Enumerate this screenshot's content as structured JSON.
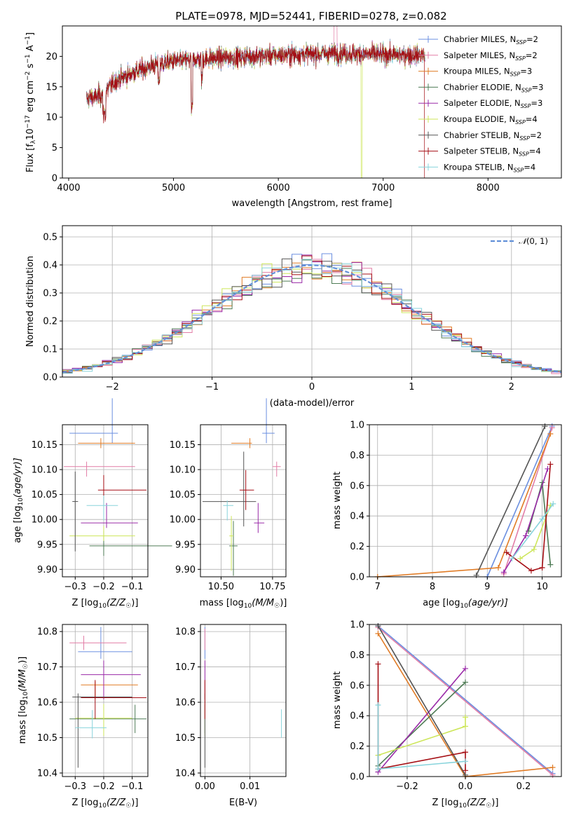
{
  "palette": [
    "#6b8fe0",
    "#e27da6",
    "#e07b25",
    "#4f7c56",
    "#9a2aa8",
    "#cde65a",
    "#555555",
    "#a50f15",
    "#88d4dc"
  ],
  "chart_data": [
    {
      "type": "line",
      "name": "spectrum",
      "title": "PLATE=0978, MJD=52441, FIBERID=0278, z=0.082",
      "xlabel": "wavelength [Angstrom, rest frame]",
      "ylabel_pre": "Flux [f",
      "ylabel_sub": "λ",
      "ylabel_mid": "10",
      "ylabel_exp": "−17",
      "ylabel_post": " erg cm",
      "ylabel_exp2": "−2",
      "ylabel_post2": " s",
      "ylabel_exp3": "−1",
      "ylabel_post3": " A",
      "ylabel_exp4": "−1",
      "ylabel_end": "]",
      "xlim": [
        3940,
        8700
      ],
      "ylim": [
        0,
        25
      ],
      "xticks": [
        "4000",
        "5000",
        "6000",
        "7000",
        "8000"
      ],
      "yticks": [
        "0",
        "5",
        "10",
        "15",
        "20"
      ],
      "grid": false,
      "legend_position": "top-right",
      "x_range": [
        4170,
        7400
      ],
      "series": [
        {
          "name_pre": "Chabrier MILES, N",
          "name_sub": "SSP",
          "name_post": "=2"
        },
        {
          "name_pre": "Salpeter MILES, N",
          "name_sub": "SSP",
          "name_post": "=2"
        },
        {
          "name_pre": "Kroupa MILES, N",
          "name_sub": "SSP",
          "name_post": "=3"
        },
        {
          "name_pre": "Chabrier ELODIE, N",
          "name_sub": "SSP",
          "name_post": "=3"
        },
        {
          "name_pre": "Salpeter ELODIE, N",
          "name_sub": "SSP",
          "name_post": "=3"
        },
        {
          "name_pre": "Kroupa ELODIE, N",
          "name_sub": "SSP",
          "name_post": "=4"
        },
        {
          "name_pre": "Chabrier STELIB, N",
          "name_sub": "SSP",
          "name_post": "=2"
        },
        {
          "name_pre": "Salpeter STELIB, N",
          "name_sub": "SSP",
          "name_post": "=4"
        },
        {
          "name_pre": "Kroupa STELIB, N",
          "name_sub": "SSP",
          "name_post": "=4"
        }
      ],
      "continuum": [
        [
          4170,
          13
        ],
        [
          4300,
          13.5
        ],
        [
          4450,
          16
        ],
        [
          4600,
          17.2
        ],
        [
          4800,
          18.5
        ],
        [
          5000,
          19.2
        ],
        [
          5200,
          19.5
        ],
        [
          5500,
          19.8
        ],
        [
          6000,
          20.2
        ],
        [
          6500,
          20.5
        ],
        [
          7000,
          20.3
        ],
        [
          7400,
          20.2
        ]
      ]
    },
    {
      "type": "bar",
      "name": "residual-histogram",
      "xlabel": "(data-model)/error",
      "ylabel": "Normed distribution",
      "xlim": [
        -2.5,
        2.5
      ],
      "ylim": [
        0,
        0.54
      ],
      "xticks": [
        "−2",
        "−1",
        "0",
        "1",
        "2"
      ],
      "yticks": [
        "0.0",
        "0.1",
        "0.2",
        "0.3",
        "0.4",
        "0.5"
      ],
      "grid": true,
      "legend_position": "top-right",
      "legend_label_pre": "𝒩",
      "legend_label_post": "(0, 1)",
      "bin_width": 0.1
    },
    {
      "type": "scatter",
      "name": "age-vs-Z",
      "xlabel_pre": "Z [log",
      "xlabel_sub": "10",
      "xlabel_post": "(Z/Z",
      "xlabel_sub2": "☉",
      "xlabel_end": ")]",
      "ylabel_pre": "age  [log",
      "ylabel_sub": "10",
      "ylabel_post": "(age/yr)]",
      "xlim": [
        -0.345,
        -0.045
      ],
      "ylim": [
        9.885,
        10.19
      ],
      "xticks": [
        "−0.3",
        "−0.2",
        "−0.1"
      ],
      "yticks": [
        "9.90",
        "9.95",
        "10.00",
        "10.05",
        "10.10",
        "10.15"
      ],
      "grid": true,
      "points": [
        {
          "x": -0.17,
          "y": 10.173,
          "xerr": [
            0.15,
            0.02
          ],
          "yerr": [
            0.02,
            0.07
          ]
        },
        {
          "x": -0.26,
          "y": 10.106,
          "xerr": [
            0.08,
            0.17
          ],
          "yerr": [
            0.02,
            0.01
          ]
        },
        {
          "x": -0.21,
          "y": 10.153,
          "xerr": [
            0.08,
            0.12
          ],
          "yerr": [
            0.01,
            0.01
          ]
        },
        {
          "x": -0.2,
          "y": 9.947,
          "xerr": [
            0.05,
            0.24
          ],
          "yerr": [
            0.02,
            0.03
          ]
        },
        {
          "x": -0.19,
          "y": 9.993,
          "xerr": [
            0.09,
            0.11
          ],
          "yerr": [
            0.01,
            0.04
          ]
        },
        {
          "x": -0.2,
          "y": 9.967,
          "xerr": [
            0.12,
            0.11
          ],
          "yerr": [
            0.01,
            0.02
          ]
        },
        {
          "x": -0.3,
          "y": 10.036,
          "xerr": [
            0.01,
            0.01
          ],
          "yerr": [
            0.1,
            0.06
          ]
        },
        {
          "x": -0.2,
          "y": 10.059,
          "xerr": [
            0.02,
            0.15
          ],
          "yerr": [
            0.03,
            0.03
          ]
        },
        {
          "x": -0.2,
          "y": 10.028,
          "xerr": [
            0.06,
            0.05
          ],
          "yerr": [
            0.03,
            0.02
          ]
        }
      ]
    },
    {
      "type": "scatter",
      "name": "age-vs-mass",
      "xlabel_pre": "mass [log",
      "xlabel_sub": "10",
      "xlabel_post": "(M/M",
      "xlabel_sub2": "☉",
      "xlabel_end": ")]",
      "xlim": [
        10.4,
        10.815
      ],
      "ylim": [
        9.885,
        10.19
      ],
      "xticks": [
        "10.50",
        "10.75"
      ],
      "yticks": [
        "9.90",
        "9.95",
        "10.00",
        "10.05",
        "10.10",
        "10.15"
      ],
      "grid": true,
      "points": [
        {
          "x": 10.72,
          "y": 10.173,
          "xerr": [
            0.02,
            0.04
          ],
          "yerr": [
            0.02,
            0.07
          ]
        },
        {
          "x": 10.77,
          "y": 10.106,
          "xerr": [
            0.02,
            0.02
          ],
          "yerr": [
            0.02,
            0.01
          ]
        },
        {
          "x": 10.64,
          "y": 10.153,
          "xerr": [
            0.09,
            0.01
          ],
          "yerr": [
            0.01,
            0.01
          ]
        },
        {
          "x": 10.56,
          "y": 9.947,
          "xerr": [
            0.02,
            0.02
          ],
          "yerr": [
            0.06,
            0.05
          ]
        },
        {
          "x": 10.68,
          "y": 9.993,
          "xerr": [
            0.02,
            0.03
          ],
          "yerr": [
            0.02,
            0.04
          ]
        },
        {
          "x": 10.55,
          "y": 9.967,
          "xerr": [
            0.01,
            0.01
          ],
          "yerr": [
            0.07,
            0.04
          ]
        },
        {
          "x": 10.61,
          "y": 10.036,
          "xerr": [
            0.2,
            0.06
          ],
          "yerr": [
            0.05,
            0.1
          ]
        },
        {
          "x": 10.62,
          "y": 10.059,
          "xerr": [
            0.03,
            0.04
          ],
          "yerr": [
            0.04,
            0.04
          ]
        },
        {
          "x": 10.53,
          "y": 10.028,
          "xerr": [
            0.02,
            0.03
          ],
          "yerr": [
            0.03,
            0.01
          ]
        }
      ]
    },
    {
      "type": "line",
      "name": "mass-weight-vs-age",
      "xlabel_pre": "age  [log",
      "xlabel_sub": "10",
      "xlabel_post": "(age/yr)]",
      "ylabel": "mass weight",
      "xlim": [
        6.85,
        10.35
      ],
      "ylim": [
        0,
        1.0
      ],
      "xticks": [
        "7",
        "8",
        "9",
        "10"
      ],
      "yticks": [
        "0.0",
        "0.2",
        "0.4",
        "0.6",
        "0.8",
        "1.0"
      ],
      "grid": true,
      "series": [
        {
          "x": [
            9.0,
            10.18
          ],
          "y": [
            0.0,
            0.99
          ]
        },
        {
          "x": [
            9.3,
            10.18
          ],
          "y": [
            0.02,
            0.98
          ]
        },
        {
          "x": [
            7.0,
            9.2,
            10.15
          ],
          "y": [
            0.0,
            0.06,
            0.94
          ]
        },
        {
          "x": [
            9.75,
            10.0,
            10.15
          ],
          "y": [
            0.3,
            0.62,
            0.08
          ]
        },
        {
          "x": [
            9.3,
            9.7,
            10.1
          ],
          "y": [
            0.03,
            0.27,
            0.71
          ]
        },
        {
          "x": [
            9.6,
            9.85,
            10.15
          ],
          "y": [
            0.12,
            0.18,
            0.47
          ]
        },
        {
          "x": [
            8.8,
            10.05
          ],
          "y": [
            0.01,
            0.99
          ]
        },
        {
          "x": [
            9.35,
            9.8,
            10.0,
            10.15
          ],
          "y": [
            0.16,
            0.04,
            0.06,
            0.74
          ]
        },
        {
          "x": [
            9.45,
            10.0,
            10.2
          ],
          "y": [
            0.12,
            0.38,
            0.48
          ]
        }
      ]
    },
    {
      "type": "scatter",
      "name": "mass-vs-Z",
      "xlabel_pre": "Z [log",
      "xlabel_sub": "10",
      "xlabel_post": "(Z/Z",
      "xlabel_sub2": "☉",
      "xlabel_end": ")]",
      "ylabel_pre": "mass [log",
      "ylabel_sub": "10",
      "ylabel_post": "(M/M",
      "ylabel_sub2": "☉",
      "ylabel_end": ")]",
      "xlim": [
        -0.345,
        -0.045
      ],
      "ylim": [
        10.39,
        10.82
      ],
      "xticks": [
        "−0.3",
        "−0.2",
        "−0.1"
      ],
      "yticks": [
        "10.4",
        "10.5",
        "10.6",
        "10.7",
        "10.8"
      ],
      "grid": true,
      "points": [
        {
          "x": -0.21,
          "y": 10.743,
          "xerr": [
            0.08,
            0.11
          ],
          "yerr": [
            0.02,
            0.07
          ]
        },
        {
          "x": -0.27,
          "y": 10.768,
          "xerr": [
            0.05,
            0.15
          ],
          "yerr": [
            0.02,
            0.02
          ]
        },
        {
          "x": -0.23,
          "y": 10.649,
          "xerr": [
            0.05,
            0.15
          ],
          "yerr": [
            0.04,
            0.01
          ]
        },
        {
          "x": -0.09,
          "y": 10.553,
          "xerr": [
            0.23,
            0.04
          ],
          "yerr": [
            0.04,
            0.04
          ]
        },
        {
          "x": -0.2,
          "y": 10.678,
          "xerr": [
            0.08,
            0.13
          ],
          "yerr": [
            0.07,
            0.04
          ]
        },
        {
          "x": -0.2,
          "y": 10.555,
          "xerr": [
            0.1,
            0.1
          ],
          "yerr": [
            0.05,
            0.04
          ]
        },
        {
          "x": -0.29,
          "y": 10.615,
          "xerr": [
            0.02,
            0.19
          ],
          "yerr": [
            0.2,
            0.01
          ]
        },
        {
          "x": -0.23,
          "y": 10.613,
          "xerr": [
            0.05,
            0.18
          ],
          "yerr": [
            0.06,
            0.05
          ]
        },
        {
          "x": -0.24,
          "y": 10.528,
          "xerr": [
            0.06,
            0.05
          ],
          "yerr": [
            0.03,
            0.05
          ]
        }
      ]
    },
    {
      "type": "scatter",
      "name": "mass-vs-EBV",
      "xlabel": "E(B-V)",
      "xlim": [
        -0.001,
        0.018
      ],
      "ylim": [
        10.39,
        10.82
      ],
      "xticks": [
        "0.00",
        "0.01"
      ],
      "yticks": [
        "10.4",
        "10.5",
        "10.6",
        "10.7",
        "10.8"
      ],
      "grid": true,
      "points": [
        {
          "x": 0.0,
          "y": 10.743,
          "yerr": [
            0.02,
            0.07
          ]
        },
        {
          "x": 0.0,
          "y": 10.768,
          "yerr": [
            0.02,
            0.04
          ]
        },
        {
          "x": 0.0,
          "y": 10.649,
          "yerr": [
            0.04,
            0.01
          ]
        },
        {
          "x": 0.0,
          "y": 10.553,
          "yerr": [
            0.04,
            0.04
          ]
        },
        {
          "x": 0.0,
          "y": 10.678,
          "yerr": [
            0.07,
            0.04
          ]
        },
        {
          "x": 0.0,
          "y": 10.555,
          "yerr": [
            0.05,
            0.04
          ]
        },
        {
          "x": 0.0,
          "y": 10.615,
          "yerr": [
            0.2,
            0.01
          ]
        },
        {
          "x": 0.0,
          "y": 10.613,
          "yerr": [
            0.06,
            0.05
          ]
        },
        {
          "x": 0.017,
          "y": 10.54,
          "yerr": [
            0.04,
            0.04
          ]
        }
      ]
    },
    {
      "type": "line",
      "name": "mass-weight-vs-Z",
      "xlabel_pre": "Z [log",
      "xlabel_sub": "10",
      "xlabel_post": "(Z/Z",
      "xlabel_sub2": "☉",
      "xlabel_end": ")]",
      "ylabel": "mass weight",
      "xlim": [
        -0.33,
        0.33
      ],
      "ylim": [
        0,
        1.0
      ],
      "xticks": [
        "−0.2",
        "0.0",
        "0.2"
      ],
      "yticks": [
        "0.0",
        "0.2",
        "0.4",
        "0.6",
        "0.8",
        "1.0"
      ],
      "grid": true,
      "series": [
        {
          "x": [
            -0.3,
            0.3
          ],
          "y": [
            0.99,
            0.02
          ]
        },
        {
          "x": [
            -0.3,
            0.3
          ],
          "y": [
            0.98,
            0.01
          ]
        },
        {
          "x": [
            -0.3,
            0.0,
            0.3
          ],
          "y": [
            0.94,
            0.0,
            0.06
          ]
        },
        {
          "x": [
            -0.3,
            0.0
          ],
          "y": [
            0.07,
            0.62
          ]
        },
        {
          "x": [
            -0.3,
            0.0
          ],
          "y": [
            0.03,
            0.71
          ]
        },
        {
          "x": [
            -0.3,
            0.0,
            0.0
          ],
          "y": [
            0.14,
            0.33,
            0.39
          ]
        },
        {
          "x": [
            -0.3,
            0.0
          ],
          "y": [
            0.99,
            0.01
          ]
        },
        {
          "x": [
            -0.3,
            -0.3,
            0.0,
            0.0
          ],
          "y": [
            0.74,
            0.05,
            0.16,
            0.04
          ]
        },
        {
          "x": [
            -0.3,
            -0.3,
            0.0
          ],
          "y": [
            0.47,
            0.05,
            0.1
          ]
        }
      ]
    }
  ]
}
